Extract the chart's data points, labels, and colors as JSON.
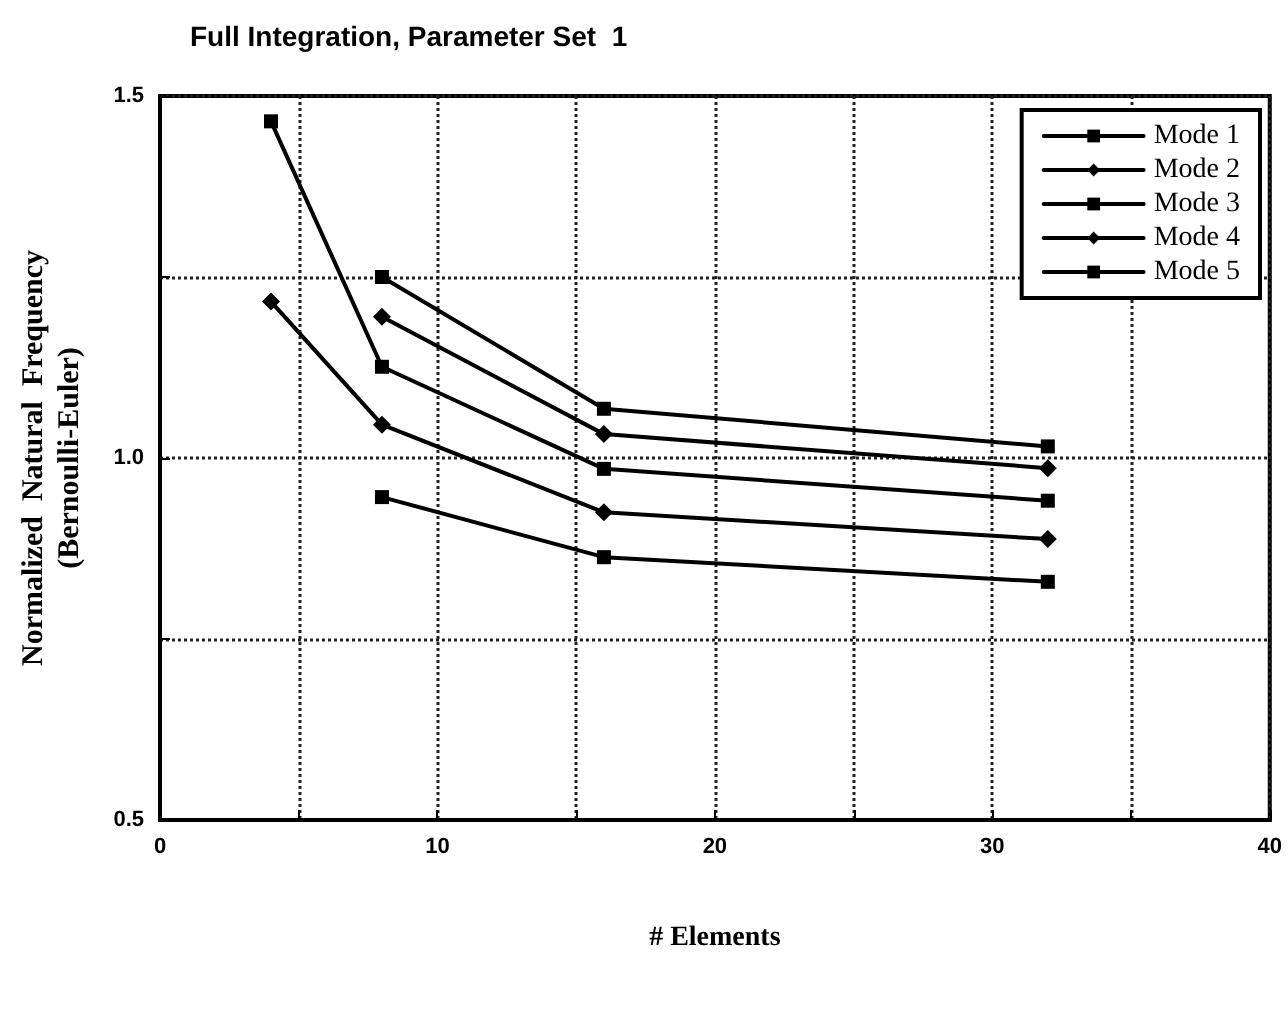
{
  "chart_data": {
    "type": "line",
    "title": "Full Integration, Parameter Set  1",
    "xlabel": "# Elements",
    "ylabel": "Normalized  Natural  Frequency\n(Bernoulli-Euler)",
    "x": [
      4,
      8,
      16,
      32
    ],
    "series": [
      {
        "name": "Mode 1",
        "color": "#000000",
        "marker": "square",
        "values": [
          null,
          1.25,
          1.068,
          1.016
        ]
      },
      {
        "name": "Mode 2",
        "color": "#000000",
        "marker": "diamond",
        "values": [
          null,
          1.195,
          1.033,
          0.986
        ]
      },
      {
        "name": "Mode 3",
        "color": "#000000",
        "marker": "square",
        "values": [
          1.465,
          1.126,
          0.985,
          0.941
        ]
      },
      {
        "name": "Mode 4",
        "color": "#000000",
        "marker": "diamond",
        "values": [
          1.216,
          1.046,
          0.925,
          0.888
        ]
      },
      {
        "name": "Mode 5",
        "color": "#000000",
        "marker": "square",
        "values": [
          null,
          0.946,
          0.863,
          0.829
        ]
      }
    ],
    "xlim": [
      0,
      40
    ],
    "xticks": [
      0,
      {
        "value": 5,
        "label": null
      },
      10,
      {
        "value": 15,
        "label": null
      },
      20,
      {
        "value": 25,
        "label": null
      },
      30,
      {
        "value": 35,
        "label": null
      },
      40
    ],
    "ylim": [
      0.5,
      1.5
    ],
    "yticks": [
      {
        "value": 0.5,
        "label": "0.5"
      },
      {
        "value": 0.75,
        "label": null
      },
      {
        "value": 1,
        "label": "1.0"
      },
      {
        "value": 1.25,
        "label": null
      },
      {
        "value": 1.5,
        "label": "1.5"
      }
    ],
    "grid": true,
    "legend": "top right",
    "line_style": "solid"
  }
}
